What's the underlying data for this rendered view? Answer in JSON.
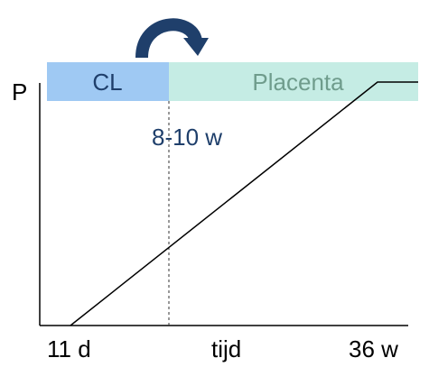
{
  "phases": [
    {
      "label": "CL",
      "color": "#9fc9f3",
      "text_color": "#1f3f6b"
    },
    {
      "label": "Placenta",
      "color": "#c5ece4",
      "text_color": "#6f9c8c"
    }
  ],
  "transition_arrow": {
    "color": "#1f3f6b",
    "icon": "curved-arrow-icon"
  },
  "axis": {
    "y_label": "P",
    "x_ticks": [
      "11 d",
      "tijd",
      "36 w"
    ]
  },
  "marker": {
    "label": "8-10 w",
    "color": "#1f3f6b",
    "line_style": "dashed"
  },
  "trend": {
    "description_type": "rising then plateau",
    "color": "#000000"
  }
}
